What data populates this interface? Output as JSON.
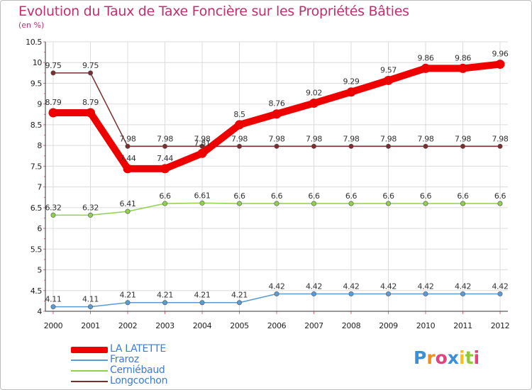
{
  "title": "Evolution du Taux de Taxe Foncière sur les Propriétés Bâties",
  "subtitle": "(en %)",
  "chart_data": {
    "type": "line",
    "title": "Evolution du Taux de Taxe Foncière sur les Propriétés Bâties",
    "ylabel": "(en %)",
    "xlabel": "",
    "ylim": [
      4,
      10.5
    ],
    "yticks": [
      "4",
      "4.5",
      "5",
      "5.5",
      "6",
      "6.5",
      "7",
      "7.5",
      "8",
      "8.5",
      "9",
      "9.5",
      "10",
      "10.5"
    ],
    "x": [
      "2000",
      "2001",
      "2002",
      "2003",
      "2004",
      "2005",
      "2006",
      "2007",
      "2008",
      "2009",
      "2010",
      "2011",
      "2012"
    ],
    "grid": true,
    "series": [
      {
        "name": "Longcochon",
        "color": "#7b2d2d",
        "values": [
          9.75,
          9.75,
          7.98,
          7.98,
          7.98,
          7.98,
          7.98,
          7.98,
          7.98,
          7.98,
          7.98,
          7.98,
          7.98
        ],
        "labels": [
          "9.75",
          "9.75",
          "7.98",
          "7.98",
          "7.98",
          "7.98",
          "7.98",
          "7.98",
          "7.98",
          "7.98",
          "7.98",
          "7.98",
          "7.98"
        ]
      },
      {
        "name": "Cerniébaud",
        "color": "#8fd14f",
        "values": [
          6.32,
          6.32,
          6.41,
          6.6,
          6.61,
          6.6,
          6.6,
          6.6,
          6.6,
          6.6,
          6.6,
          6.6,
          6.6
        ],
        "labels": [
          "6.32",
          "6.32",
          "6.41",
          "6.6",
          "6.61",
          "6.6",
          "6.6",
          "6.6",
          "6.6",
          "6.6",
          "6.6",
          "6.6",
          "6.6"
        ]
      },
      {
        "name": "Fraroz",
        "color": "#5b9bd5",
        "values": [
          4.11,
          4.11,
          4.21,
          4.21,
          4.21,
          4.21,
          4.42,
          4.42,
          4.42,
          4.42,
          4.42,
          4.42,
          4.42
        ],
        "labels": [
          "4.11",
          "4.11",
          "4.21",
          "4.21",
          "4.21",
          "4.21",
          "4.42",
          "4.42",
          "4.42",
          "4.42",
          "4.42",
          "4.42",
          "4.42"
        ]
      },
      {
        "name": "LA LATETTE",
        "color": "#ee0000",
        "values": [
          8.79,
          8.79,
          7.44,
          7.44,
          7.81,
          8.5,
          8.76,
          9.02,
          9.29,
          9.57,
          9.86,
          9.86,
          9.96
        ],
        "labels": [
          "8.79",
          "8.79",
          "7.44",
          "7.44",
          "7.81",
          "8.5",
          "8.76",
          "9.02",
          "9.29",
          "9.57",
          "9.86",
          "9.86",
          "9.96"
        ]
      }
    ]
  },
  "legend": {
    "items": [
      {
        "name": "LA LATETTE",
        "color": "#ee0000"
      },
      {
        "name": "Fraroz",
        "color": "#5b9bd5"
      },
      {
        "name": "Cerniébaud",
        "color": "#8fd14f"
      },
      {
        "name": "Longcochon",
        "color": "#7b2d2d"
      }
    ]
  },
  "logo": {
    "text": "Proxiti",
    "letters": [
      {
        "ch": "P",
        "color": "#3a8fd8"
      },
      {
        "ch": "r",
        "color": "#f28c1b"
      },
      {
        "ch": "o",
        "color": "#e0447a"
      },
      {
        "ch": "x",
        "color": "#3a8fd8"
      },
      {
        "ch": "i",
        "color": "#f2c21b"
      },
      {
        "ch": "t",
        "color": "#8fc93a"
      },
      {
        "ch": "i",
        "color": "#e0447a"
      }
    ]
  }
}
